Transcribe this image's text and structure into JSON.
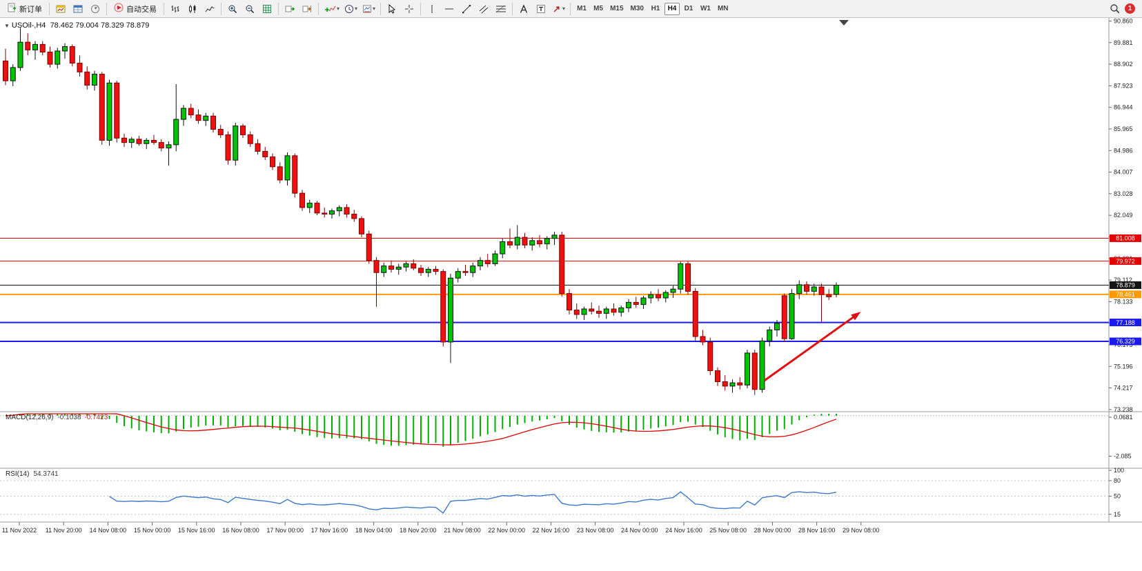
{
  "toolbar": {
    "new_order_label": "新订单",
    "auto_trading_label": "自动交易",
    "timeframes": [
      "M1",
      "M5",
      "M15",
      "M30",
      "H1",
      "H4",
      "D1",
      "W1",
      "MN"
    ],
    "active_timeframe": "H4",
    "notification_count": "1"
  },
  "chart_data": {
    "type": "candlestick",
    "symbol_label": "USOil-,H4",
    "ohlc_text": "78.462 79.004 78.329 78.879",
    "current_ohlc": {
      "open": "78.462",
      "high": "79.004",
      "low": "78.329",
      "close": "78.879"
    },
    "price_axis_ticks": [
      "90.860",
      "89.881",
      "88.902",
      "87.923",
      "86.944",
      "85.965",
      "84.986",
      "84.007",
      "83.028",
      "82.049",
      "81.070",
      "80.091",
      "79.112",
      "78.133",
      "77.154",
      "76.175",
      "75.196",
      "74.217",
      "73.238"
    ],
    "time_axis_labels": [
      "11 Nov 2022",
      "11 Nov 20:00",
      "14 Nov 08:00",
      "15 Nov 00:00",
      "15 Nov 16:00",
      "16 Nov 08:00",
      "17 Nov 00:00",
      "17 Nov 16:00",
      "18 Nov 04:00",
      "18 Nov 20:00",
      "21 Nov 08:00",
      "22 Nov 00:00",
      "22 Nov 16:00",
      "23 Nov 08:00",
      "24 Nov 00:00",
      "24 Nov 16:00",
      "25 Nov 08:00",
      "28 Nov 00:00",
      "28 Nov 16:00",
      "29 Nov 08:00"
    ],
    "hlines": [
      {
        "price": 81.008,
        "label": "81.008",
        "color": "#e40000",
        "width": 1
      },
      {
        "price": 79.972,
        "label": "79.972",
        "color": "#e40000",
        "width": 1
      },
      {
        "price": 78.879,
        "label": "78.879",
        "color": "#141414",
        "width": 1,
        "role": "current-price"
      },
      {
        "price": 78.461,
        "label": "78.461",
        "color": "#ff9900",
        "width": 2
      },
      {
        "price": 77.188,
        "label": "77.188",
        "color": "#1a1aee",
        "width": 2
      },
      {
        "price": 76.329,
        "label": "76.329",
        "color": "#1a1aee",
        "width": 2
      }
    ],
    "arrow": {
      "from": {
        "bar": 102.3,
        "price": 74.55
      },
      "to": {
        "bar": 115.3,
        "price": 77.67
      },
      "color": "#e01010",
      "width": 3
    },
    "candles": [
      [
        89.05,
        89.6,
        87.95,
        88.15
      ],
      [
        88.15,
        88.9,
        87.9,
        88.75
      ],
      [
        88.75,
        90.55,
        88.6,
        89.9
      ],
      [
        89.9,
        90.3,
        89.3,
        89.55
      ],
      [
        89.55,
        89.95,
        89.1,
        89.8
      ],
      [
        89.8,
        89.95,
        89.3,
        89.45
      ],
      [
        89.45,
        89.7,
        88.75,
        88.9
      ],
      [
        88.9,
        89.65,
        88.7,
        89.5
      ],
      [
        89.5,
        89.85,
        89.15,
        89.7
      ],
      [
        89.7,
        89.8,
        88.8,
        88.95
      ],
      [
        88.95,
        89.3,
        88.35,
        88.55
      ],
      [
        88.55,
        88.8,
        87.75,
        87.95
      ],
      [
        87.95,
        88.6,
        87.7,
        88.45
      ],
      [
        88.45,
        88.55,
        85.25,
        85.45
      ],
      [
        85.45,
        88.2,
        85.2,
        88.05
      ],
      [
        88.05,
        88.15,
        85.35,
        85.55
      ],
      [
        85.55,
        85.75,
        85.15,
        85.35
      ],
      [
        85.35,
        85.6,
        85.1,
        85.5
      ],
      [
        85.5,
        85.65,
        85.2,
        85.3
      ],
      [
        85.3,
        85.55,
        85.05,
        85.45
      ],
      [
        85.45,
        85.7,
        85.25,
        85.35
      ],
      [
        85.35,
        85.5,
        84.95,
        85.1
      ],
      [
        85.1,
        85.4,
        84.3,
        85.25
      ],
      [
        85.25,
        88.0,
        84.95,
        86.4
      ],
      [
        86.4,
        87.05,
        86.1,
        86.9
      ],
      [
        86.9,
        87.1,
        86.45,
        86.6
      ],
      [
        86.6,
        86.85,
        86.2,
        86.35
      ],
      [
        86.35,
        86.7,
        86.1,
        86.55
      ],
      [
        86.55,
        86.7,
        85.8,
        85.95
      ],
      [
        85.95,
        86.15,
        85.55,
        85.7
      ],
      [
        85.7,
        85.85,
        84.35,
        84.55
      ],
      [
        84.55,
        86.25,
        84.3,
        86.1
      ],
      [
        86.1,
        86.2,
        85.55,
        85.7
      ],
      [
        85.7,
        85.85,
        85.15,
        85.3
      ],
      [
        85.3,
        85.5,
        84.8,
        84.95
      ],
      [
        84.95,
        85.15,
        84.55,
        84.7
      ],
      [
        84.7,
        84.85,
        84.1,
        84.25
      ],
      [
        84.25,
        84.45,
        83.5,
        83.65
      ],
      [
        83.65,
        84.9,
        83.4,
        84.75
      ],
      [
        84.75,
        84.85,
        82.85,
        83.05
      ],
      [
        83.05,
        83.2,
        82.25,
        82.4
      ],
      [
        82.4,
        82.75,
        82.15,
        82.6
      ],
      [
        82.6,
        82.7,
        82.05,
        82.15
      ],
      [
        82.15,
        82.4,
        81.95,
        82.1
      ],
      [
        82.1,
        82.35,
        81.9,
        82.25
      ],
      [
        82.25,
        82.5,
        82.0,
        82.4
      ],
      [
        82.4,
        82.55,
        81.95,
        82.1
      ],
      [
        82.1,
        82.3,
        81.75,
        81.9
      ],
      [
        81.9,
        82.0,
        81.05,
        81.2
      ],
      [
        81.2,
        81.35,
        79.85,
        80.0
      ],
      [
        80.0,
        80.15,
        77.9,
        79.45
      ],
      [
        79.45,
        79.9,
        79.25,
        79.75
      ],
      [
        79.75,
        80.0,
        79.45,
        79.6
      ],
      [
        79.6,
        79.85,
        79.35,
        79.7
      ],
      [
        79.7,
        79.95,
        79.5,
        79.85
      ],
      [
        79.85,
        80.05,
        79.55,
        79.65
      ],
      [
        79.65,
        79.8,
        79.3,
        79.45
      ],
      [
        79.45,
        79.7,
        79.25,
        79.6
      ],
      [
        79.6,
        79.75,
        79.35,
        79.5
      ],
      [
        79.5,
        79.6,
        76.1,
        76.3
      ],
      [
        76.3,
        79.4,
        75.35,
        79.2
      ],
      [
        79.2,
        79.65,
        79.0,
        79.5
      ],
      [
        79.5,
        79.8,
        79.3,
        79.45
      ],
      [
        79.45,
        79.9,
        79.25,
        79.75
      ],
      [
        79.75,
        80.15,
        79.55,
        80.0
      ],
      [
        80.0,
        80.3,
        79.7,
        79.85
      ],
      [
        79.85,
        80.45,
        79.75,
        80.3
      ],
      [
        80.3,
        81.0,
        80.1,
        80.85
      ],
      [
        80.85,
        81.45,
        80.55,
        80.7
      ],
      [
        80.7,
        81.6,
        80.5,
        81.05
      ],
      [
        81.05,
        81.25,
        80.55,
        80.7
      ],
      [
        80.7,
        81.05,
        80.45,
        80.9
      ],
      [
        80.9,
        81.15,
        80.6,
        80.75
      ],
      [
        80.75,
        81.1,
        80.5,
        81.0
      ],
      [
        81.0,
        81.3,
        80.7,
        81.15
      ],
      [
        81.15,
        81.3,
        78.35,
        78.5
      ],
      [
        78.5,
        78.7,
        77.55,
        77.75
      ],
      [
        77.75,
        78.05,
        77.35,
        77.55
      ],
      [
        77.55,
        77.9,
        77.3,
        77.8
      ],
      [
        77.8,
        78.1,
        77.55,
        77.7
      ],
      [
        77.7,
        77.95,
        77.4,
        77.6
      ],
      [
        77.6,
        77.9,
        77.35,
        77.8
      ],
      [
        77.8,
        78.05,
        77.5,
        77.65
      ],
      [
        77.65,
        77.95,
        77.45,
        77.85
      ],
      [
        77.85,
        78.25,
        77.65,
        78.1
      ],
      [
        78.1,
        78.35,
        77.85,
        78.0
      ],
      [
        78.0,
        78.4,
        77.8,
        78.3
      ],
      [
        78.3,
        78.6,
        78.05,
        78.45
      ],
      [
        78.45,
        78.7,
        78.15,
        78.3
      ],
      [
        78.3,
        78.65,
        78.1,
        78.55
      ],
      [
        78.55,
        78.85,
        78.3,
        78.7
      ],
      [
        78.7,
        79.95,
        78.5,
        79.85
      ],
      [
        79.85,
        79.95,
        78.45,
        78.6
      ],
      [
        78.6,
        78.75,
        76.35,
        76.55
      ],
      [
        76.55,
        76.85,
        76.15,
        76.3
      ],
      [
        76.3,
        76.5,
        74.8,
        75.0
      ],
      [
        75.0,
        75.15,
        74.3,
        74.5
      ],
      [
        74.5,
        74.8,
        74.1,
        74.3
      ],
      [
        74.3,
        74.6,
        74.0,
        74.45
      ],
      [
        74.45,
        74.7,
        74.15,
        74.35
      ],
      [
        74.35,
        75.95,
        74.2,
        75.8
      ],
      [
        75.8,
        75.95,
        73.9,
        74.15
      ],
      [
        74.15,
        76.5,
        74.0,
        76.35
      ],
      [
        76.35,
        77.0,
        76.1,
        76.85
      ],
      [
        76.85,
        77.3,
        76.55,
        77.15
      ],
      [
        78.4,
        78.5,
        76.3,
        76.45
      ],
      [
        76.45,
        78.7,
        76.4,
        78.5
      ],
      [
        78.5,
        79.1,
        78.25,
        78.9
      ],
      [
        78.9,
        79.05,
        78.45,
        78.6
      ],
      [
        78.6,
        78.95,
        78.4,
        78.8
      ],
      [
        78.8,
        78.95,
        77.2,
        78.45
      ],
      [
        78.45,
        78.7,
        78.2,
        78.35
      ],
      [
        78.462,
        79.004,
        78.329,
        78.879
      ]
    ],
    "macd": {
      "label": "MACD(12,26,9)",
      "value_main": "-0.1038",
      "value_signal": "-0.7423",
      "scale_values": [
        0.0681,
        -2.085
      ],
      "scale_labels": [
        "0.0681",
        "-2.085"
      ],
      "range": [
        0.1,
        -2.6
      ],
      "hist_color": "#00b000",
      "signal_color": "#e00000"
    },
    "rsi": {
      "label": "RSI(14)",
      "value": "54.3741",
      "scale_labels": [
        "100",
        "80",
        "50",
        "15"
      ],
      "scale_values": [
        100,
        80,
        50,
        15
      ],
      "levels": [
        80,
        50,
        15
      ],
      "range": [
        100,
        0
      ],
      "color": "#3c78c8"
    },
    "colors": {
      "up_fill": "#00c400",
      "up_stroke": "#111111",
      "down_fill": "#ee1111",
      "down_stroke": "#7a0000",
      "panel_border": "#9a9a9a",
      "scale_text": "#222222",
      "background": "#ffffff"
    }
  }
}
